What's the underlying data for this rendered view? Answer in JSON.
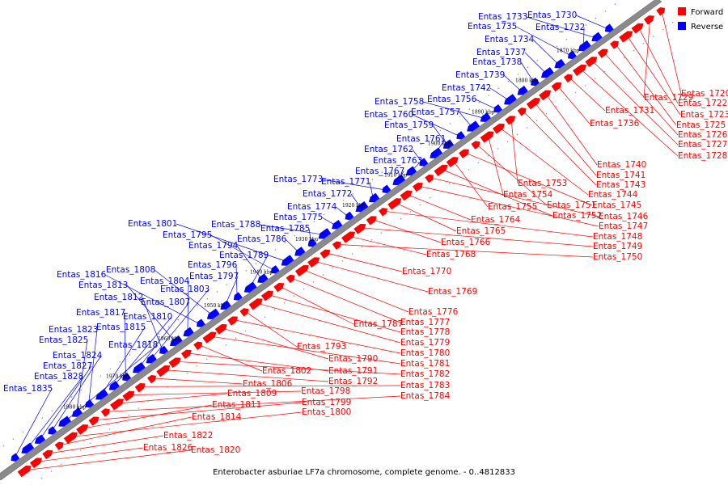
{
  "caption": "Enterobacter asburiae LF7a chromosome, complete genome. - 0..4812833",
  "legend": [
    {
      "label": "Forward",
      "color": "#ff0000"
    },
    {
      "label": "Reverse",
      "color": "#0000ff"
    }
  ],
  "colors": {
    "forward": "#ff0000",
    "reverse": "#0000ff",
    "backbone": "#808080"
  },
  "ticks": [
    "1870 kbp",
    "1880 kbp",
    "1890 kbp",
    "1900 kbp",
    "1910 kbp",
    "1920 kbp",
    "1930 kbp",
    "1940 kbp",
    "1950 kbp",
    "1960 kbp",
    "1970 kbp",
    "1980 kbp"
  ],
  "reverse_genes": [
    "Entas_1730",
    "Entas_1733",
    "Entas_1732",
    "Entas_1735",
    "Entas_1734",
    "Entas_1737",
    "Entas_1738",
    "Entas_1739",
    "Entas_1742",
    "Entas_1756",
    "Entas_1758",
    "Entas_1757",
    "Entas_1760",
    "Entas_1759",
    "Entas_1761",
    "Entas_1762",
    "Entas_1763",
    "Entas_1767",
    "Entas_1773",
    "Entas_1771",
    "Entas_1772",
    "Entas_1774",
    "Entas_1775",
    "Entas_1788",
    "Entas_1785",
    "Entas_1786",
    "Entas_1801",
    "Entas_1795",
    "Entas_1794",
    "Entas_1789",
    "Entas_1796",
    "Entas_1797",
    "Entas_1808",
    "Entas_1816",
    "Entas_1804",
    "Entas_1813",
    "Entas_1812",
    "Entas_1803",
    "Entas_1807",
    "Entas_1817",
    "Entas_1810",
    "Entas_1815",
    "Entas_1823",
    "Entas_1825",
    "Entas_1818",
    "Entas_1824",
    "Entas_1827",
    "Entas_1828",
    "Entas_1835"
  ],
  "forward_genes": [
    "Entas_1720",
    "Entas_1729",
    "Entas_1722",
    "Entas_1723",
    "Entas_1725",
    "Entas_1726",
    "Entas_1727",
    "Entas_1728",
    "Entas_1731",
    "Entas_1736",
    "Entas_1740",
    "Entas_1741",
    "Entas_1743",
    "Entas_1753",
    "Entas_1744",
    "Entas_1754",
    "Entas_1751",
    "Entas_1745",
    "Entas_1755",
    "Entas_1752",
    "Entas_1746",
    "Entas_1747",
    "Entas_1764",
    "Entas_1765",
    "Entas_1748",
    "Entas_1766",
    "Entas_1749",
    "Entas_1768",
    "Entas_1750",
    "Entas_1770",
    "Entas_1769",
    "Entas_1776",
    "Entas_1777",
    "Entas_1787",
    "Entas_1778",
    "Entas_1779",
    "Entas_1793",
    "Entas_1780",
    "Entas_1790",
    "Entas_1781",
    "Entas_1802",
    "Entas_1791",
    "Entas_1782",
    "Entas_1792",
    "Entas_1806",
    "Entas_1783",
    "Entas_1798",
    "Entas_1809",
    "Entas_1784",
    "Entas_1799",
    "Entas_1811",
    "Entas_1800",
    "Entas_1814",
    "Entas_1822",
    "Entas_1826",
    "Entas_1820"
  ]
}
